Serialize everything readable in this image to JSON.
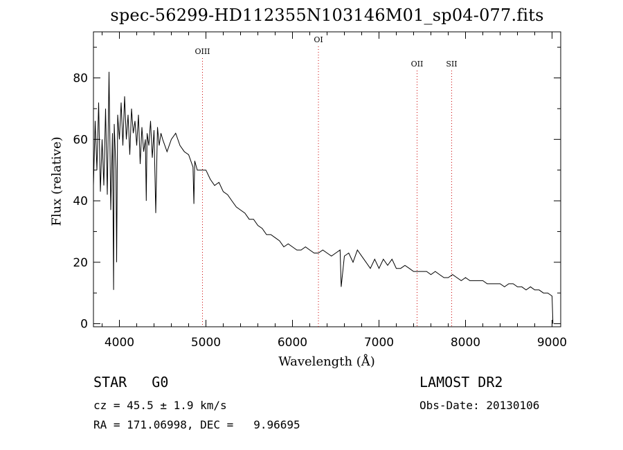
{
  "chart_data": {
    "type": "line",
    "title": "spec-56299-HD112355N103146M01_sp04-077.fits",
    "xlabel": "Wavelength (Å)",
    "ylabel": "Flux (relative)",
    "xlim": [
      3700,
      9100
    ],
    "ylim": [
      -1,
      95
    ],
    "xticks": [
      4000,
      5000,
      6000,
      7000,
      8000,
      9000
    ],
    "yticks": [
      0,
      20,
      40,
      60,
      80
    ],
    "series": [
      {
        "x": [
          3700,
          3720,
          3740,
          3760,
          3780,
          3800,
          3820,
          3840,
          3860,
          3880,
          3900,
          3920,
          3933,
          3940,
          3960,
          3968,
          3980,
          4000,
          4020,
          4040,
          4060,
          4080,
          4100,
          4120,
          4140,
          4160,
          4180,
          4200,
          4220,
          4240,
          4260,
          4280,
          4300,
          4310,
          4320,
          4340,
          4360,
          4380,
          4400,
          4420,
          4440,
          4460,
          4480,
          4500,
          4550,
          4600,
          4650,
          4700,
          4750,
          4800,
          4850,
          4861,
          4870,
          4900,
          4950,
          5000,
          5050,
          5100,
          5150,
          5200,
          5250,
          5300,
          5350,
          5400,
          5450,
          5500,
          5550,
          5600,
          5650,
          5700,
          5750,
          5800,
          5850,
          5900,
          5950,
          6000,
          6050,
          6100,
          6150,
          6200,
          6250,
          6300,
          6350,
          6400,
          6450,
          6500,
          6550,
          6563,
          6600,
          6650,
          6700,
          6750,
          6800,
          6850,
          6900,
          6950,
          7000,
          7050,
          7100,
          7150,
          7200,
          7250,
          7300,
          7350,
          7400,
          7450,
          7500,
          7550,
          7600,
          7650,
          7700,
          7750,
          7800,
          7850,
          7900,
          7950,
          8000,
          8050,
          8100,
          8150,
          8200,
          8250,
          8300,
          8350,
          8400,
          8450,
          8500,
          8550,
          8600,
          8650,
          8700,
          8750,
          8800,
          8850,
          8900,
          8950,
          9000,
          9010
        ],
        "y": [
          45,
          66,
          50,
          72,
          43,
          60,
          45,
          70,
          42,
          82,
          37,
          62,
          11,
          65,
          50,
          20,
          68,
          60,
          72,
          58,
          74,
          60,
          68,
          55,
          70,
          62,
          66,
          58,
          68,
          52,
          64,
          56,
          60,
          40,
          62,
          58,
          66,
          54,
          63,
          36,
          64,
          58,
          62,
          60,
          56,
          60,
          62,
          58,
          56,
          55,
          51,
          39,
          53,
          50,
          50,
          50,
          47,
          45,
          46,
          43,
          42,
          40,
          38,
          37,
          36,
          34,
          34,
          32,
          31,
          29,
          29,
          28,
          27,
          25,
          26,
          25,
          24,
          24,
          25,
          24,
          23,
          23,
          24,
          23,
          22,
          23,
          24,
          12,
          22,
          23,
          20,
          24,
          22,
          20,
          18,
          21,
          18,
          21,
          19,
          21,
          18,
          18,
          19,
          18,
          17,
          17,
          17,
          17,
          16,
          17,
          16,
          15,
          15,
          16,
          15,
          14,
          15,
          14,
          14,
          14,
          14,
          13,
          13,
          13,
          13,
          12,
          13,
          13,
          12,
          12,
          11,
          12,
          11,
          11,
          10,
          10,
          9,
          0
        ]
      }
    ],
    "emission_lines": [
      {
        "label": "OIII",
        "x": 4960
      },
      {
        "label": "OI",
        "x": 6300
      },
      {
        "label": "OII",
        "x": 7440
      },
      {
        "label": "SII",
        "x": 7840
      }
    ]
  },
  "info": {
    "object_class": "STAR",
    "subclass": "G0",
    "survey": "LAMOST DR2",
    "cz_line": "cz = 45.5 ± 1.9 km/s",
    "obs_date_line": "Obs-Date: 20130106",
    "radec_line": "RA = 171.06998, DEC =   9.96695"
  },
  "colors": {
    "spectrum": "#000000",
    "emission_lines": "#cc0000",
    "axes": "#000000"
  }
}
